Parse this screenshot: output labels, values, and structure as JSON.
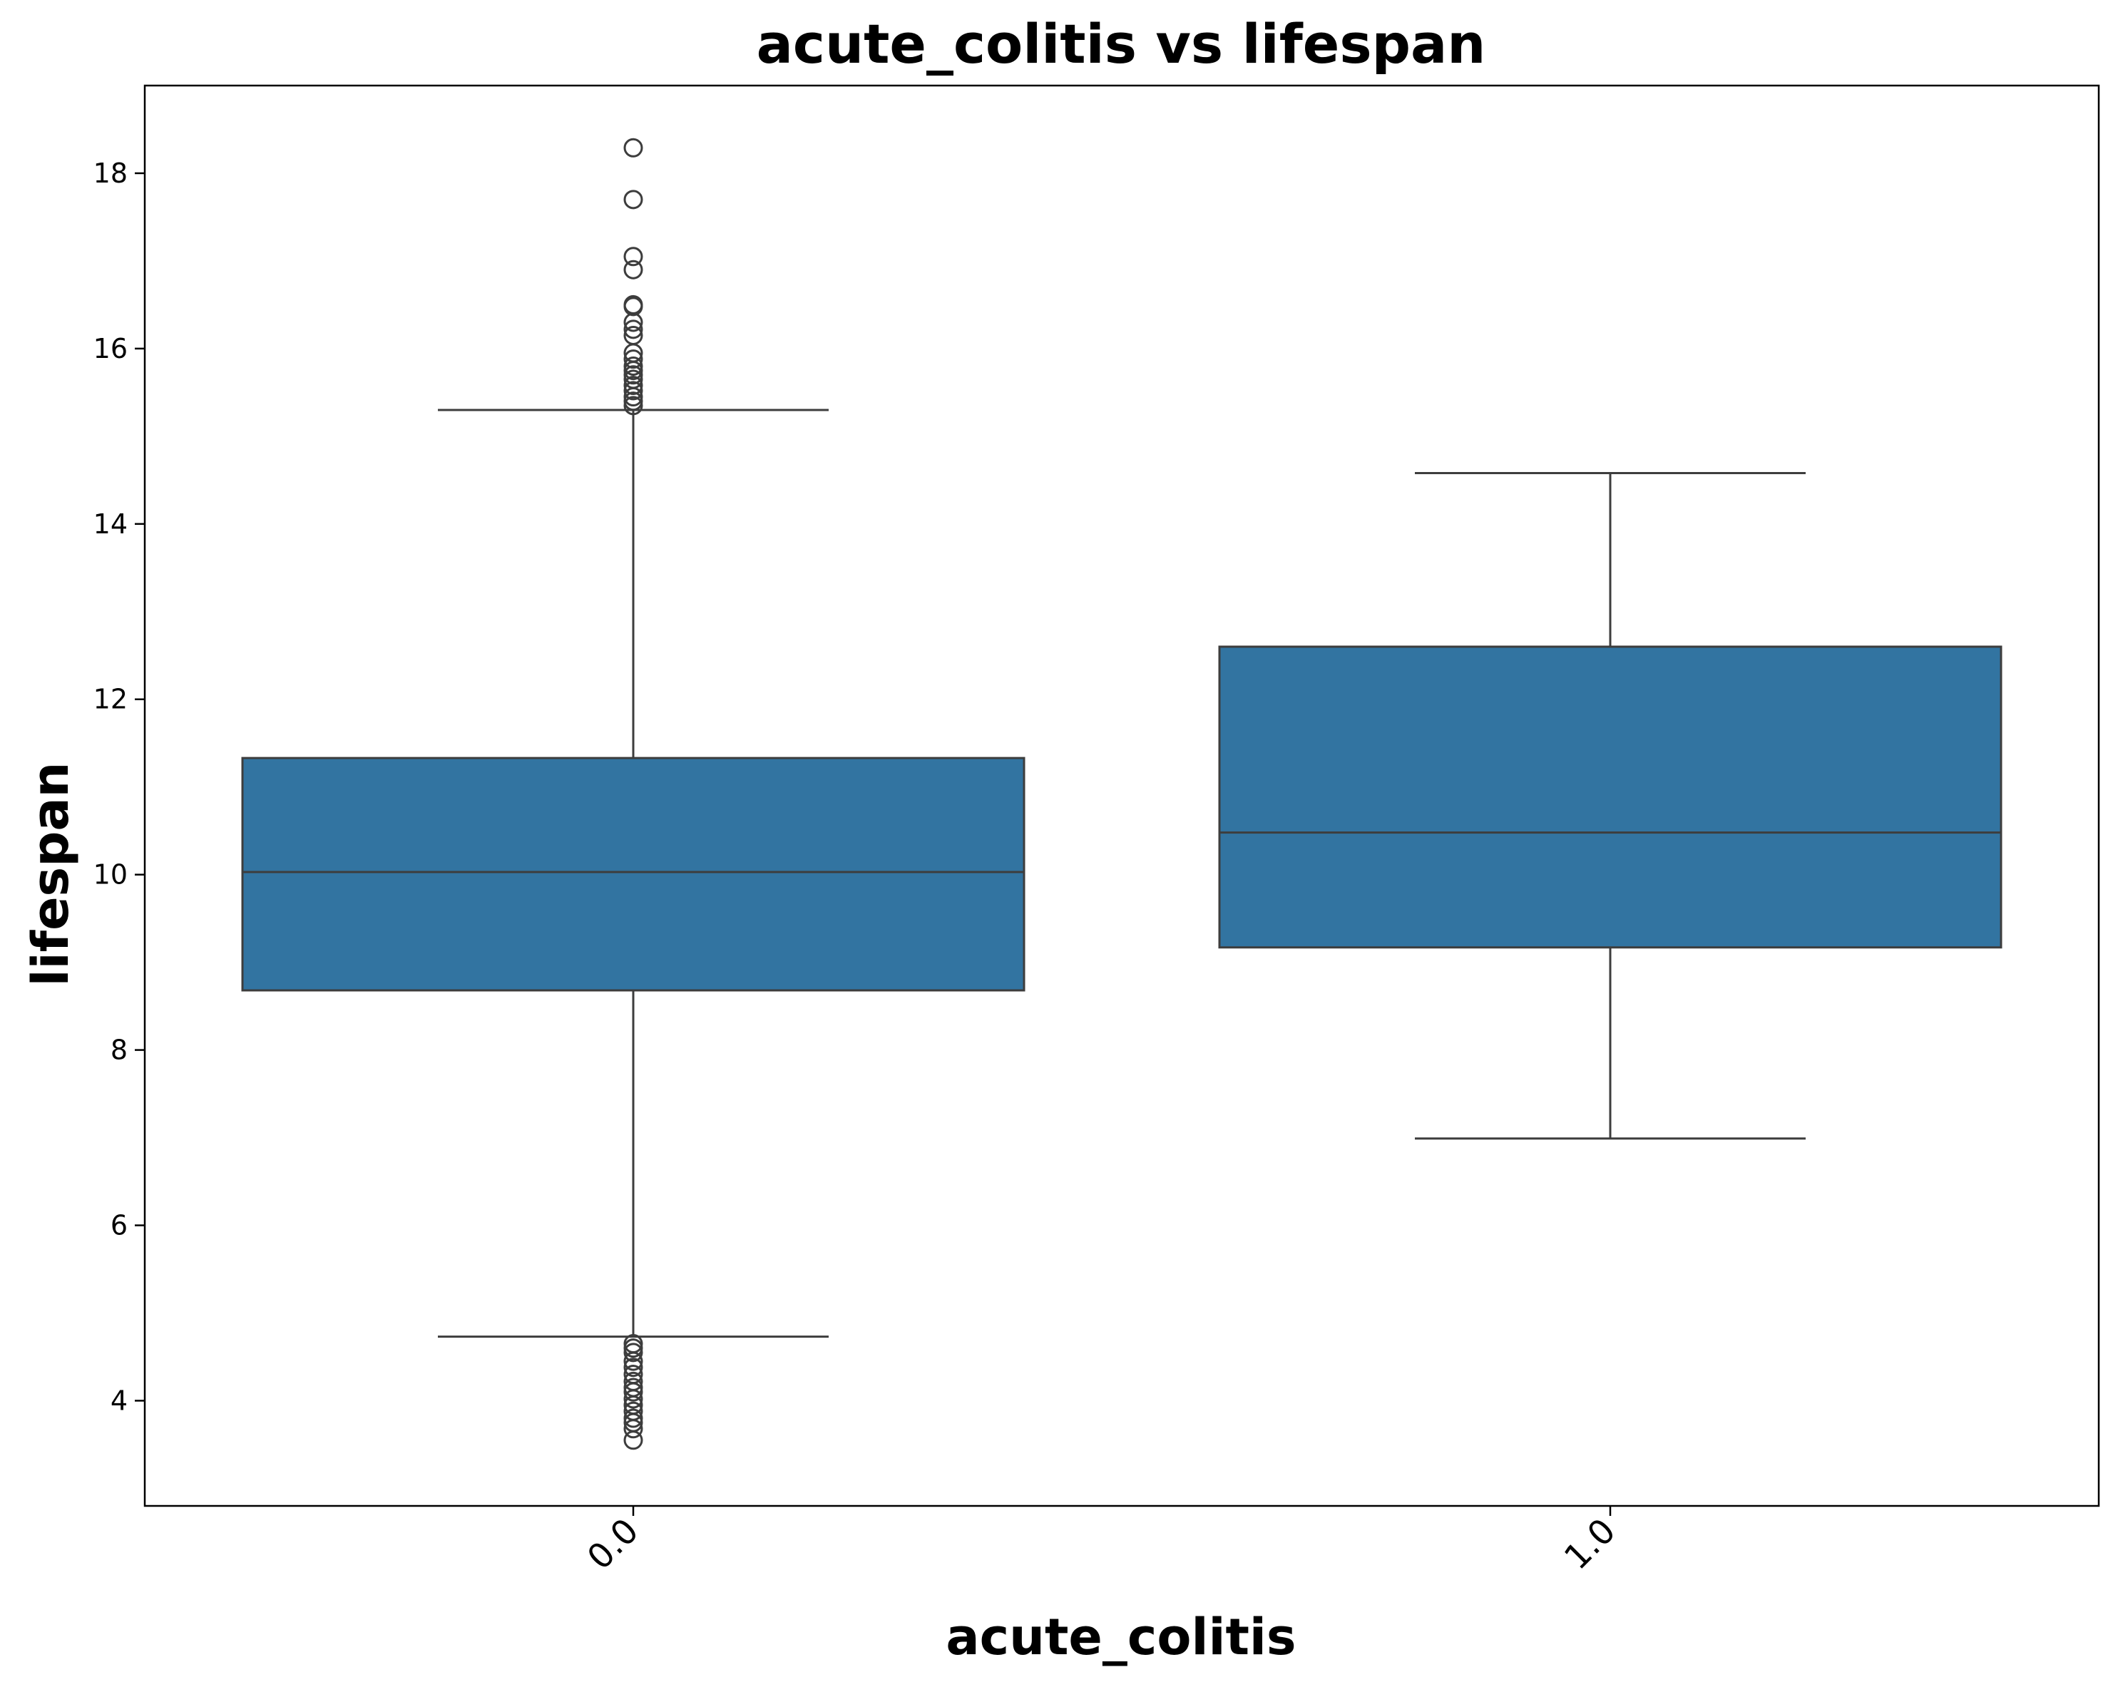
{
  "chart_data": {
    "type": "box",
    "title": "acute_colitis vs lifespan",
    "xlabel": "acute_colitis",
    "ylabel": "lifespan",
    "ylim": [
      2.8,
      19.0
    ],
    "yticks": [
      4,
      6,
      8,
      10,
      12,
      14,
      16,
      18
    ],
    "categories": [
      "0.0",
      "1.0"
    ],
    "grid": false,
    "legend": "none",
    "colors": {
      "box_fill": "#3274a1",
      "line": "#3d3d3d",
      "axes": "#000000"
    },
    "boxes": [
      {
        "category": "0.0",
        "whisker_low": 4.73,
        "q1": 8.68,
        "median": 10.03,
        "q3": 11.33,
        "whisker_high": 15.3,
        "outliers": [
          18.29,
          17.7,
          17.05,
          16.9,
          16.5,
          16.48,
          16.3,
          16.22,
          16.15,
          15.95,
          15.88,
          15.8,
          15.75,
          15.7,
          15.65,
          15.58,
          15.52,
          15.45,
          15.4,
          15.35,
          4.65,
          4.6,
          4.55,
          4.45,
          4.38,
          4.3,
          4.22,
          4.15,
          4.1,
          4.02,
          3.95,
          3.88,
          3.8,
          3.75,
          3.68,
          3.55
        ]
      },
      {
        "category": "1.0",
        "whisker_low": 6.99,
        "q1": 9.17,
        "median": 10.48,
        "q3": 12.6,
        "whisker_high": 14.58,
        "outliers": []
      }
    ]
  }
}
